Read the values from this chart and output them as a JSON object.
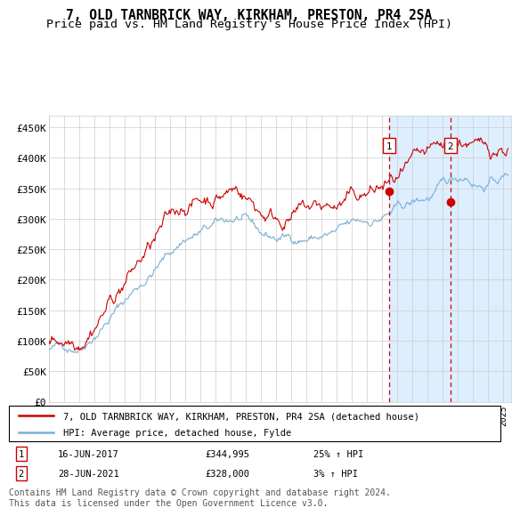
{
  "title": "7, OLD TARNBRICK WAY, KIRKHAM, PRESTON, PR4 2SA",
  "subtitle": "Price paid vs. HM Land Registry's House Price Index (HPI)",
  "ylabel_ticks": [
    "£0",
    "£50K",
    "£100K",
    "£150K",
    "£200K",
    "£250K",
    "£300K",
    "£350K",
    "£400K",
    "£450K"
  ],
  "ytick_values": [
    0,
    50000,
    100000,
    150000,
    200000,
    250000,
    300000,
    350000,
    400000,
    450000
  ],
  "ylim": [
    0,
    470000
  ],
  "xlim_start": 1995.0,
  "xlim_end": 2025.5,
  "sale1_date": 2017.46,
  "sale1_price": 344995,
  "sale1_label": "1",
  "sale2_date": 2021.49,
  "sale2_price": 328000,
  "sale2_label": "2",
  "legend_line1": "7, OLD TARNBRICK WAY, KIRKHAM, PRESTON, PR4 2SA (detached house)",
  "legend_line2": "HPI: Average price, detached house, Fylde",
  "footer": "Contains HM Land Registry data © Crown copyright and database right 2024.\nThis data is licensed under the Open Government Licence v3.0.",
  "hpi_color": "#7bafd4",
  "price_color": "#cc0000",
  "grid_color": "#cccccc",
  "highlight_bg": "#ddeeff",
  "title_fontsize": 10.5,
  "subtitle_fontsize": 9.5,
  "axis_fontsize": 8,
  "footer_fontsize": 7
}
